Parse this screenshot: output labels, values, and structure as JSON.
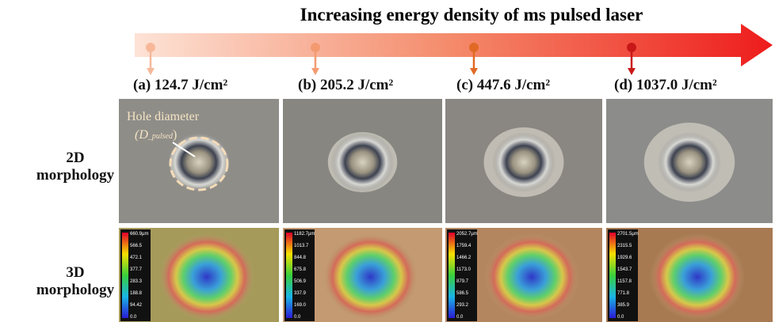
{
  "header": {
    "title": "Increasing  energy density of ms pulsed laser"
  },
  "row_labels": [
    [
      "2D",
      "morphology"
    ],
    [
      "3D",
      "morphology"
    ]
  ],
  "hole_label": {
    "text": "Hole diameter",
    "open": "(D",
    "subscript": "_pulsed",
    "close": ")"
  },
  "panels": [
    {
      "label": "(a) 124.7 J/cm²",
      "colorbar": [
        "660.9μm",
        "566.5",
        "472.1",
        "377.7",
        "283.3",
        "188.8",
        "94.42",
        "0.0"
      ]
    },
    {
      "label": "(b) 205.2 J/cm²",
      "colorbar": [
        "1182.7μm",
        "1013.7",
        "844.8",
        "675.8",
        "506.9",
        "337.9",
        "169.0",
        "0.0"
      ]
    },
    {
      "label": "(c) 447.6 J/cm²",
      "colorbar": [
        "2052.7μm",
        "1759.4",
        "1466.2",
        "1173.0",
        "879.7",
        "586.5",
        "293.2",
        "0.0"
      ]
    },
    {
      "label": "(d) 1037.0 J/cm²",
      "colorbar": [
        "2701.5μm",
        "2315.5",
        "1929.6",
        "1543.7",
        "1157.8",
        "771.8",
        "385.9",
        "0.0"
      ]
    }
  ]
}
